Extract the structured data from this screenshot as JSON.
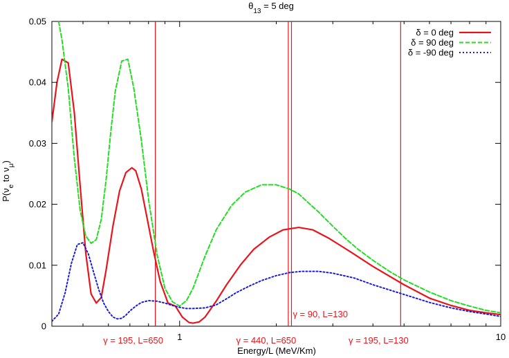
{
  "chart_data": {
    "type": "line",
    "title": "θ13 = 5 deg",
    "title_parts": {
      "base": "θ",
      "sub": "13",
      "rest": " = 5 deg"
    },
    "xlabel": "Energy/L (MeV/Km)",
    "ylabel": "P(νe to νμ)",
    "ylabel_parts": {
      "pre": "P(ν",
      "sub1": "e",
      "mid": " to ν",
      "sub2": "μ",
      "post": ")"
    },
    "x_scale": "log",
    "xlim": [
      0.4,
      10
    ],
    "ylim": [
      0,
      0.05
    ],
    "x_ticks": [
      {
        "value": 1,
        "label": "1"
      },
      {
        "value": 10,
        "label": "10"
      }
    ],
    "x_minor_ticks": [
      0.4,
      0.5,
      0.6,
      0.7,
      0.8,
      0.9,
      2,
      3,
      4,
      5,
      6,
      7,
      8,
      9
    ],
    "y_ticks": [
      {
        "value": 0,
        "label": "0"
      },
      {
        "value": 0.01,
        "label": "0.01"
      },
      {
        "value": 0.02,
        "label": "0.02"
      },
      {
        "value": 0.03,
        "label": "0.03"
      },
      {
        "value": 0.04,
        "label": "0.04"
      },
      {
        "value": 0.05,
        "label": "0.05"
      }
    ],
    "grid": false,
    "legend_position": "top-right",
    "series": [
      {
        "name": "δ = 0 deg",
        "color": "#e8141c",
        "style": "solid",
        "x": [
          0.4,
          0.415,
          0.43,
          0.45,
          0.47,
          0.49,
          0.51,
          0.53,
          0.55,
          0.57,
          0.59,
          0.62,
          0.65,
          0.68,
          0.71,
          0.73,
          0.76,
          0.79,
          0.83,
          0.87,
          0.92,
          0.97,
          1.02,
          1.07,
          1.1,
          1.15,
          1.2,
          1.3,
          1.4,
          1.55,
          1.7,
          1.9,
          2.1,
          2.35,
          2.6,
          2.9,
          3.2,
          3.5,
          4,
          5,
          6,
          7,
          8,
          9,
          10
        ],
        "y": [
          0.0335,
          0.04,
          0.0438,
          0.0432,
          0.035,
          0.023,
          0.012,
          0.0053,
          0.0038,
          0.0047,
          0.0092,
          0.0165,
          0.0222,
          0.0252,
          0.026,
          0.0255,
          0.0225,
          0.018,
          0.0122,
          0.0073,
          0.0038,
          0.0033,
          0.0015,
          0.0006,
          0.0005,
          0.0007,
          0.0015,
          0.0041,
          0.0068,
          0.0101,
          0.0126,
          0.0146,
          0.0158,
          0.0162,
          0.0158,
          0.0145,
          0.0131,
          0.0118,
          0.0098,
          0.0068,
          0.0046,
          0.0034,
          0.0026,
          0.0022,
          0.0019
        ]
      },
      {
        "name": "δ = 90 deg",
        "color": "#22dd22",
        "style": "dashed",
        "x": [
          0.42,
          0.43,
          0.45,
          0.47,
          0.49,
          0.51,
          0.53,
          0.55,
          0.57,
          0.59,
          0.61,
          0.63,
          0.66,
          0.69,
          0.72,
          0.76,
          0.8,
          0.85,
          0.9,
          0.95,
          1.0,
          1.05,
          1.1,
          1.2,
          1.3,
          1.45,
          1.6,
          1.8,
          2.0,
          2.2,
          2.35,
          2.5,
          2.7,
          3.0,
          3.3,
          3.6,
          4.0,
          4.5,
          5.0,
          6.0,
          7.0,
          8.0,
          9.0,
          10.0
        ],
        "y": [
          0.05,
          0.047,
          0.039,
          0.0275,
          0.019,
          0.0148,
          0.0136,
          0.0142,
          0.0175,
          0.024,
          0.0318,
          0.0385,
          0.0435,
          0.0438,
          0.039,
          0.0305,
          0.0208,
          0.0118,
          0.0062,
          0.004,
          0.0033,
          0.0042,
          0.0062,
          0.0115,
          0.0158,
          0.0198,
          0.022,
          0.0232,
          0.0232,
          0.0225,
          0.0217,
          0.0204,
          0.0188,
          0.0164,
          0.0143,
          0.0126,
          0.0108,
          0.009,
          0.0076,
          0.0056,
          0.0042,
          0.0033,
          0.0026,
          0.0022
        ]
      },
      {
        "name": "δ = -90 deg",
        "color": "#1a1add",
        "style": "dotted",
        "x": [
          0.4,
          0.42,
          0.44,
          0.46,
          0.48,
          0.5,
          0.52,
          0.54,
          0.56,
          0.58,
          0.6,
          0.62,
          0.64,
          0.66,
          0.68,
          0.7,
          0.73,
          0.76,
          0.8,
          0.85,
          0.9,
          0.95,
          1.0,
          1.05,
          1.1,
          1.2,
          1.3,
          1.4,
          1.5,
          1.65,
          1.8,
          2.0,
          2.2,
          2.4,
          2.7,
          3.0,
          3.5,
          4.0,
          5.0,
          6.0,
          7.0,
          8.0,
          9.0,
          10.0
        ],
        "y": [
          0.0008,
          0.002,
          0.0055,
          0.0103,
          0.0134,
          0.0137,
          0.0118,
          0.0088,
          0.006,
          0.0038,
          0.0024,
          0.0015,
          0.0012,
          0.0013,
          0.0018,
          0.0025,
          0.0033,
          0.0039,
          0.0042,
          0.0041,
          0.0038,
          0.0034,
          0.0031,
          0.0029,
          0.0029,
          0.003,
          0.0035,
          0.0045,
          0.0055,
          0.0066,
          0.0075,
          0.0083,
          0.0088,
          0.009,
          0.009,
          0.0087,
          0.0079,
          0.0068,
          0.0052,
          0.0039,
          0.003,
          0.0024,
          0.002,
          0.0016
        ]
      }
    ],
    "vlines": [
      {
        "x": 0.84,
        "label": "γ = 195, L=650",
        "label_row": "bottom"
      },
      {
        "x": 2.18,
        "label": "γ = 440, L=650",
        "label_row": "bottom"
      },
      {
        "x": 2.23,
        "label": "γ = 90, L=130",
        "label_row": "inside"
      },
      {
        "x": 4.88,
        "label": "γ = 195, L=130",
        "label_row": "bottom"
      }
    ],
    "vline_color": "#e8141c"
  }
}
